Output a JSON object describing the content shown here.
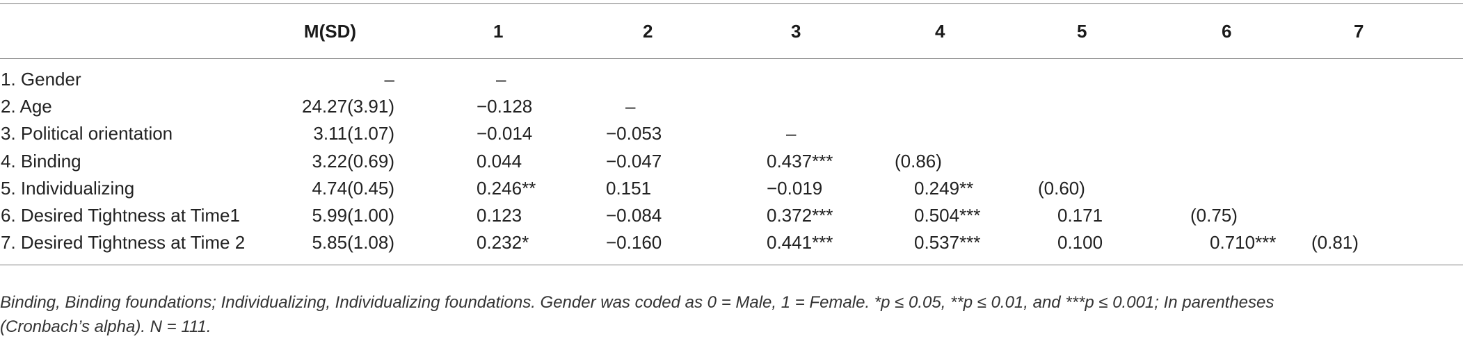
{
  "table": {
    "headers": [
      "",
      "M(SD)",
      "1",
      "2",
      "3",
      "4",
      "5",
      "6",
      "7"
    ],
    "rows": [
      {
        "label": "1. Gender",
        "msd": "–",
        "cells": [
          "–",
          "",
          "",
          "",
          "",
          "",
          ""
        ]
      },
      {
        "label": "2. Age",
        "msd": "24.27(3.91)",
        "cells": [
          "−0.128",
          "–",
          "",
          "",
          "",
          "",
          ""
        ]
      },
      {
        "label": "3. Political orientation",
        "msd": "3.11(1.07)",
        "cells": [
          "−0.014",
          "−0.053",
          "–",
          "",
          "",
          "",
          ""
        ]
      },
      {
        "label": "4. Binding",
        "msd": "3.22(0.69)",
        "cells": [
          "0.044",
          "−0.047",
          "0.437***",
          "(0.86)",
          "",
          "",
          ""
        ]
      },
      {
        "label": "5. Individualizing",
        "msd": "4.74(0.45)",
        "cells": [
          "0.246**",
          "0.151",
          "−0.019",
          "0.249**",
          "(0.60)",
          "",
          ""
        ]
      },
      {
        "label": "6. Desired Tightness at Time1",
        "msd": "5.99(1.00)",
        "cells": [
          "0.123",
          "−0.084",
          "0.372***",
          "0.504***",
          "0.171",
          "(0.75)",
          ""
        ]
      },
      {
        "label": "7. Desired Tightness at Time 2",
        "msd": "5.85(1.08)",
        "cells": [
          "0.232*",
          "−0.160",
          "0.441***",
          "0.537***",
          "0.100",
          "0.710***",
          "(0.81)"
        ]
      }
    ]
  },
  "note": {
    "line1": "Binding, Binding foundations; Individualizing, Individualizing foundations. Gender was coded as 0 = Male, 1 = Female. *p ≤ 0.05, **p ≤ 0.01, and ***p ≤ 0.001; In parentheses",
    "line2": "(Cronbach’s alpha). N = 111."
  }
}
